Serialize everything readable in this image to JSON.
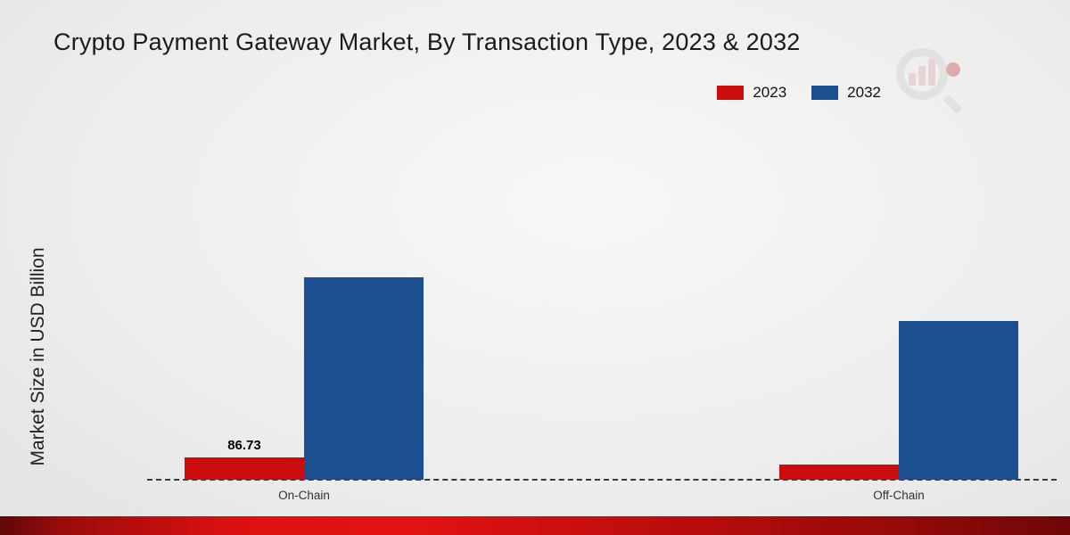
{
  "title": "Crypto Payment Gateway Market, By Transaction Type, 2023 & 2032",
  "ylabel": "Market Size in USD Billion",
  "legend": [
    {
      "label": "2023",
      "color": "#cc0d0d"
    },
    {
      "label": "2032",
      "color": "#1b4f8f"
    }
  ],
  "chart_data": {
    "type": "bar",
    "title": "Crypto Payment Gateway Market, By Transaction Type, 2023 & 2032",
    "xlabel": "",
    "ylabel": "Market Size in USD Billion",
    "categories": [
      "On-Chain",
      "Off-Chain"
    ],
    "series": [
      {
        "name": "2023",
        "color": "#cc0d0d",
        "values": [
          86.73,
          60
        ],
        "value_labels": [
          "86.73",
          ""
        ]
      },
      {
        "name": "2032",
        "color": "#1b4f8f",
        "values": [
          790,
          620
        ],
        "value_labels": [
          "",
          ""
        ]
      }
    ],
    "ylim": [
      0,
      1350
    ],
    "grid": false,
    "legend_position": "top-right",
    "baseline_style": "dashed"
  }
}
